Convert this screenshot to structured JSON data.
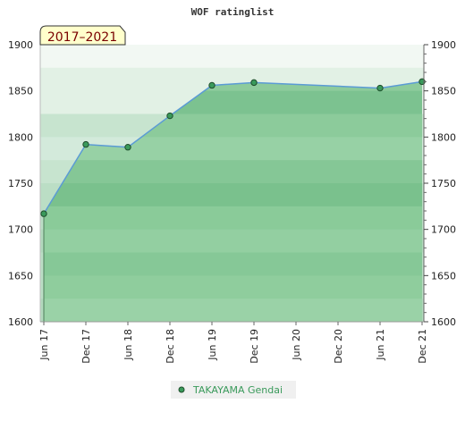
{
  "chart_data": {
    "type": "area",
    "title": "WOF ratinglist",
    "period_label": "2017–2021",
    "x_ticks": [
      "Jun 17",
      "Dec 17",
      "Jun 18",
      "Dec 18",
      "Jun 19",
      "Dec 19",
      "Jun 20",
      "Dec 20",
      "Jun 21",
      "Dec 21"
    ],
    "ylim": [
      1600,
      1900
    ],
    "y_ticks": [
      1600,
      1650,
      1700,
      1750,
      1800,
      1850,
      1900
    ],
    "series": [
      {
        "name": "TAKAYAMA Gendai",
        "x": [
          "Jun 17",
          "Dec 17",
          "Jun 18",
          "Dec 18",
          "Jun 19",
          "Dec 19",
          "Jun 21",
          "Dec 21"
        ],
        "values": [
          1717,
          1792,
          1789,
          1823,
          1856,
          1859,
          1853,
          1860
        ]
      }
    ],
    "colors": {
      "line": "#5b9bd5",
      "marker_fill": "#3a9a5b",
      "legend_text": "#3a9a5b",
      "title_box_fill": "#ffffcc"
    },
    "legend_position": "bottom-center"
  }
}
